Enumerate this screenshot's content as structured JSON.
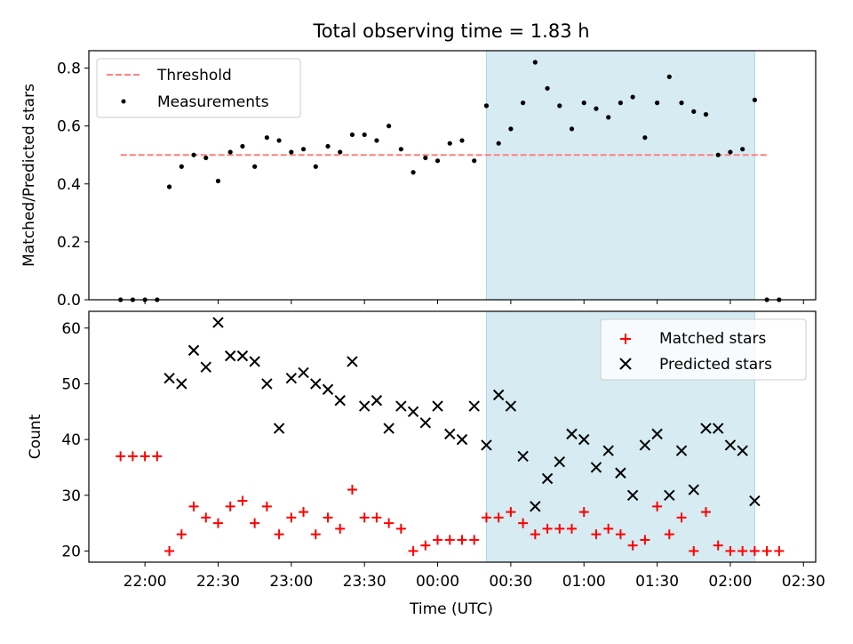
{
  "figure": {
    "title": "Total observing time = 1.83 h",
    "xlabel": "Time (UTC)"
  },
  "colors": {
    "shade": "#add8e6",
    "threshold": "#ff7f7f",
    "measurement": "#000000",
    "matched": "#ff0000",
    "predicted": "#000000"
  },
  "chart_data": [
    {
      "type": "scatter",
      "panel": "top",
      "ylabel": "Matched/Predicted stars",
      "xlim": [
        "21:37",
        "02:35"
      ],
      "ylim": [
        0,
        0.86
      ],
      "yticks": [
        0.0,
        0.2,
        0.4,
        0.6,
        0.8
      ],
      "shaded_span": [
        "00:20",
        "02:10"
      ],
      "legend_placement": "upper left",
      "threshold": {
        "name": "Threshold",
        "value": 0.5,
        "x_range": [
          "21:50",
          "02:15"
        ]
      },
      "series": [
        {
          "name": "Measurements",
          "x": [
            "21:50",
            "21:55",
            "22:00",
            "22:05",
            "22:10",
            "22:15",
            "22:20",
            "22:25",
            "22:30",
            "22:35",
            "22:40",
            "22:45",
            "22:50",
            "22:55",
            "23:00",
            "23:05",
            "23:10",
            "23:15",
            "23:20",
            "23:25",
            "23:30",
            "23:35",
            "23:40",
            "23:45",
            "23:50",
            "23:55",
            "00:00",
            "00:05",
            "00:10",
            "00:15",
            "00:20",
            "00:25",
            "00:30",
            "00:35",
            "00:40",
            "00:45",
            "00:50",
            "00:55",
            "01:00",
            "01:05",
            "01:10",
            "01:15",
            "01:20",
            "01:25",
            "01:30",
            "01:35",
            "01:40",
            "01:45",
            "01:50",
            "01:55",
            "02:00",
            "02:05",
            "02:10",
            "02:15",
            "02:20"
          ],
          "y": [
            0,
            0,
            0,
            0,
            0.39,
            0.46,
            0.5,
            0.49,
            0.41,
            0.51,
            0.53,
            0.46,
            0.56,
            0.55,
            0.51,
            0.52,
            0.46,
            0.53,
            0.51,
            0.57,
            0.57,
            0.55,
            0.6,
            0.52,
            0.44,
            0.49,
            0.48,
            0.54,
            0.55,
            0.48,
            0.67,
            0.54,
            0.59,
            0.68,
            0.82,
            0.73,
            0.67,
            0.59,
            0.68,
            0.66,
            0.63,
            0.68,
            0.7,
            0.56,
            0.68,
            0.77,
            0.68,
            0.65,
            0.64,
            0.5,
            0.51,
            0.52,
            0.69,
            0,
            0
          ]
        }
      ]
    },
    {
      "type": "scatter",
      "panel": "bottom",
      "ylabel": "Count",
      "xlim": [
        "21:37",
        "02:35"
      ],
      "ylim": [
        18,
        63
      ],
      "yticks": [
        20,
        30,
        40,
        50,
        60
      ],
      "xticks": [
        "22:00",
        "22:30",
        "23:00",
        "23:30",
        "00:00",
        "00:30",
        "01:00",
        "01:30",
        "02:00",
        "02:30"
      ],
      "shaded_span": [
        "00:20",
        "02:10"
      ],
      "legend_placement": "upper right",
      "series": [
        {
          "name": "Matched stars",
          "x": [
            "21:50",
            "21:55",
            "22:00",
            "22:05",
            "22:10",
            "22:15",
            "22:20",
            "22:25",
            "22:30",
            "22:35",
            "22:40",
            "22:45",
            "22:50",
            "22:55",
            "23:00",
            "23:05",
            "23:10",
            "23:15",
            "23:20",
            "23:25",
            "23:30",
            "23:35",
            "23:40",
            "23:45",
            "23:50",
            "23:55",
            "00:00",
            "00:05",
            "00:10",
            "00:15",
            "00:20",
            "00:25",
            "00:30",
            "00:35",
            "00:40",
            "00:45",
            "00:50",
            "00:55",
            "01:00",
            "01:05",
            "01:10",
            "01:15",
            "01:20",
            "01:25",
            "01:30",
            "01:35",
            "01:40",
            "01:45",
            "01:50",
            "01:55",
            "02:00",
            "02:05",
            "02:10",
            "02:15",
            "02:20"
          ],
          "y": [
            37,
            37,
            37,
            37,
            20,
            23,
            28,
            26,
            25,
            28,
            29,
            25,
            28,
            23,
            26,
            27,
            23,
            26,
            24,
            31,
            26,
            26,
            25,
            24,
            20,
            21,
            22,
            22,
            22,
            22,
            26,
            26,
            27,
            25,
            23,
            24,
            24,
            24,
            27,
            23,
            24,
            23,
            21,
            22,
            28,
            23,
            26,
            20,
            27,
            21,
            20,
            20,
            20,
            20,
            20
          ]
        },
        {
          "name": "Predicted stars",
          "x": [
            "22:10",
            "22:15",
            "22:20",
            "22:25",
            "22:30",
            "22:35",
            "22:40",
            "22:45",
            "22:50",
            "22:55",
            "23:00",
            "23:05",
            "23:10",
            "23:15",
            "23:20",
            "23:25",
            "23:30",
            "23:35",
            "23:40",
            "23:45",
            "23:50",
            "23:55",
            "00:00",
            "00:05",
            "00:10",
            "00:15",
            "00:20",
            "00:25",
            "00:30",
            "00:35",
            "00:40",
            "00:45",
            "00:50",
            "00:55",
            "01:00",
            "01:05",
            "01:10",
            "01:15",
            "01:20",
            "01:25",
            "01:30",
            "01:35",
            "01:40",
            "01:45",
            "01:50",
            "01:55",
            "02:00",
            "02:05",
            "02:10"
          ],
          "y": [
            51,
            50,
            56,
            53,
            61,
            55,
            55,
            54,
            50,
            42,
            51,
            52,
            50,
            49,
            47,
            54,
            46,
            47,
            42,
            46,
            45,
            43,
            46,
            41,
            40,
            46,
            39,
            48,
            46,
            37,
            28,
            33,
            36,
            41,
            40,
            35,
            38,
            34,
            30,
            39,
            41,
            30,
            38,
            31,
            42,
            42,
            39,
            38,
            29
          ]
        }
      ]
    }
  ]
}
